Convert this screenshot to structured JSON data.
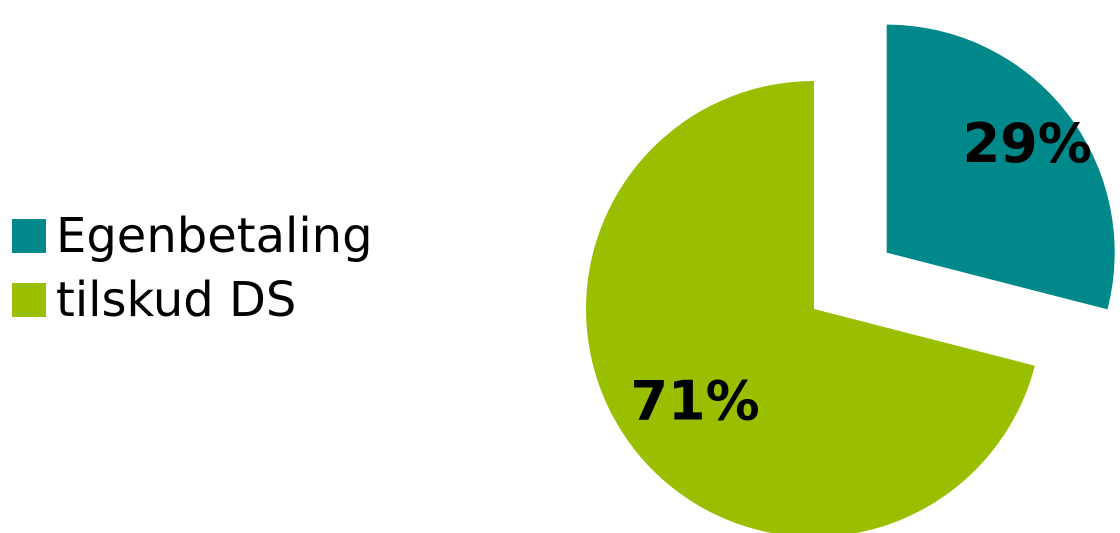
{
  "chart_data": {
    "type": "pie",
    "categories": [
      "Egenbetaling",
      "tilskud DS"
    ],
    "values": [
      29,
      71
    ],
    "unit": "%",
    "data_labels": [
      "29%",
      "71%"
    ],
    "colors": [
      "#00888A",
      "#99BF00"
    ],
    "legend_position": "left",
    "exploded_slice": "Egenbetaling"
  }
}
